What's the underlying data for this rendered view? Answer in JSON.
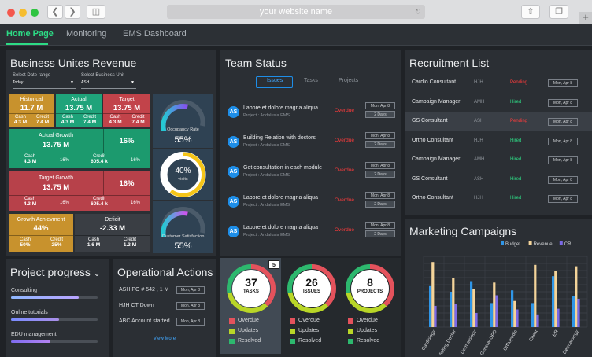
{
  "browser": {
    "url": "your website name"
  },
  "nav": {
    "tabs": [
      "Home Page",
      "Monitoring",
      "EMS Dashboard"
    ]
  },
  "revenue": {
    "title": "Business Unites Revenue",
    "date_label": "Select Date range",
    "date_value": "Today",
    "unit_label": "Select Business Unit",
    "unit_value": "ASH",
    "historical": {
      "title": "Historical",
      "value": "11.7 M",
      "cash_label": "Cash",
      "cash": "4.3 M",
      "credit_label": "Credit",
      "credit": "7.4 M"
    },
    "actual": {
      "title": "Actual",
      "value": "13.75 M",
      "cash_label": "Cash",
      "cash": "4.3 M",
      "credit_label": "Credit",
      "credit": "7.4 M"
    },
    "target": {
      "title": "Target",
      "value": "13.75 M",
      "cash_label": "Cash",
      "cash": "4.3 M",
      "credit_label": "Credit",
      "credit": "7.4 M"
    },
    "actual_growth": {
      "title": "Actual Growth",
      "value": "13.75 M",
      "pct": "16%",
      "cash_label": "Cash",
      "cash": "4.3 M",
      "mid": "16%",
      "credit_label": "Credit",
      "credit": "605.4 k",
      "end": "16%"
    },
    "target_growth": {
      "title": "Target Growth",
      "value": "13.75 M",
      "pct": "16%",
      "cash_label": "Cash",
      "cash": "4.3 M",
      "mid": "16%",
      "credit_label": "Credit",
      "credit": "605.4 k",
      "end": "16%"
    },
    "growth_ach": {
      "title": "Growth Achievment",
      "value": "44%",
      "cash_label": "Cash",
      "cash": "50%",
      "credit_label": "Credit",
      "credit": "25%"
    },
    "deficit": {
      "title": "Deficit",
      "value": "-2.33 M",
      "cash_label": "Cash",
      "cash": "1.6 M",
      "credit_label": "Credit",
      "credit": "1.3 M"
    },
    "gauges": [
      {
        "caption": "Occupancy Rate",
        "value": "55%",
        "level": 0.55
      },
      {
        "caption": "visits",
        "value": "40%",
        "level": 0.4
      },
      {
        "caption": "Customer Satisfaction",
        "value": "55%",
        "level": 0.55
      }
    ]
  },
  "team": {
    "title": "Team Status",
    "tabs": [
      "Issues",
      "Tasks",
      "Projects"
    ],
    "items": [
      {
        "avatar": "AS",
        "title": "Labore et dolore magna aliqua",
        "project": "Project : Andalusia EMS",
        "status": "Overdue",
        "date": "Mon, Apr 8",
        "days": "2 Days"
      },
      {
        "avatar": "AS",
        "title": "Building Relation with doctors",
        "project": "Project : Andalusia EMS",
        "status": "Overdue",
        "date": "Mon, Apr 8",
        "days": "2 Days"
      },
      {
        "avatar": "AS",
        "title": "Get consultation in each module",
        "project": "Project : Andalusia EMS",
        "status": "Overdue",
        "date": "Mon, Apr 8",
        "days": "2 Days"
      },
      {
        "avatar": "AS",
        "title": "Labore et dolore magna aliqua",
        "project": "Project : Andalusia EMS",
        "status": "Overdue",
        "date": "Mon, Apr 8",
        "days": "2 Days"
      },
      {
        "avatar": "AS",
        "title": "Labore et dolore magna aliqua",
        "project": "Project : Andalusia EMS",
        "status": "Overdue",
        "date": "Mon, Apr 8",
        "days": "2 Days"
      }
    ]
  },
  "recruit": {
    "title": "Recruitment List",
    "rows": [
      {
        "role": "Cardio Consultant",
        "code": "HJH",
        "status": "Pending",
        "date": "Mon, Apr 8"
      },
      {
        "role": "Campaign Manager",
        "code": "AMH",
        "status": "Hired",
        "date": "Mon, Apr 8"
      },
      {
        "role": "GS Consultant",
        "code": "ASH",
        "status": "Pending",
        "date": "Mon, Apr 8"
      },
      {
        "role": "Ortho Consultant",
        "code": "HJH",
        "status": "Hired",
        "date": "Mon, Apr 8"
      },
      {
        "role": "Campaign Manager",
        "code": "AMH",
        "status": "Hired",
        "date": "Mon, Apr 8"
      },
      {
        "role": "GS Consultant",
        "code": "ASH",
        "status": "Hired",
        "date": "Mon, Apr 8"
      },
      {
        "role": "Ortho Consultant",
        "code": "HJH",
        "status": "Hired",
        "date": "Mon, Apr 8"
      }
    ]
  },
  "progress": {
    "title": "Project progress",
    "items": [
      {
        "label": "Consulting",
        "value": 0.78
      },
      {
        "label": "Online tutorials",
        "value": 0.55
      },
      {
        "label": "EDU management",
        "value": 0.45
      }
    ]
  },
  "ops": {
    "title": "Operational Actions",
    "items": [
      {
        "label": "ASH PO # 542 , 1 M",
        "date": "Mon, Apr 8"
      },
      {
        "label": "HJH CT Down",
        "date": "Mon, Apr 8"
      },
      {
        "label": "ABC Account started",
        "date": "Mon, Apr 8"
      }
    ],
    "more": "View More"
  },
  "rings": {
    "badge": "5",
    "items": [
      {
        "num": "37",
        "label": "TASKS",
        "legend": [
          "Overdue",
          "Updates",
          "Resolved"
        ]
      },
      {
        "num": "26",
        "label": "ISSUES",
        "legend": [
          "Overdue",
          "Updates",
          "Resolved"
        ]
      },
      {
        "num": "8",
        "label": "PROJECTS",
        "legend": [
          "Overdue",
          "Updates",
          "Resolved"
        ]
      }
    ]
  },
  "chart_data": {
    "type": "bar",
    "title": "Marketing Campaigns",
    "categories": [
      "Cardiology",
      "Visiting Doctor",
      "Dermatology",
      "General OPD",
      "Orthopedic",
      "Chest",
      "ER",
      "Dermatology"
    ],
    "series": [
      {
        "name": "Budget",
        "color": "#2f96e8",
        "values": [
          58,
          50,
          65,
          34,
          52,
          34,
          72,
          44
        ]
      },
      {
        "name": "Revenue",
        "color": "#f4d49a",
        "values": [
          92,
          70,
          54,
          63,
          37,
          88,
          80,
          86
        ]
      },
      {
        "name": "CR",
        "color": "#7b69e6",
        "values": [
          30,
          33,
          20,
          45,
          25,
          18,
          26,
          40
        ]
      }
    ],
    "ylim": [
      0,
      100
    ],
    "grid": true,
    "legend": "top"
  }
}
